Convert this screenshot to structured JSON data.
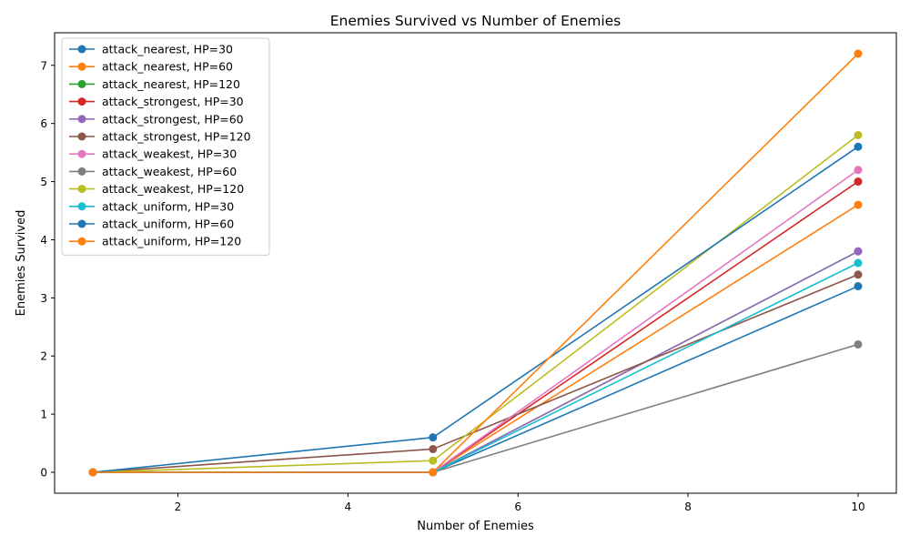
{
  "chart_data": {
    "type": "line",
    "title": "Enemies Survived vs Number of Enemies",
    "xlabel": "Number of Enemies",
    "ylabel": "Enemies Survived",
    "x": [
      1,
      5,
      10
    ],
    "xlim": [
      0.55,
      10.45
    ],
    "ylim": [
      -0.36,
      7.56
    ],
    "xticks": [
      2,
      4,
      6,
      8,
      10
    ],
    "yticks": [
      0,
      1,
      2,
      3,
      4,
      5,
      6,
      7
    ],
    "grid": false,
    "legend_position": "top-left",
    "marker": "circle",
    "series": [
      {
        "name": "attack_nearest, HP=30",
        "values": [
          0,
          0,
          3.2
        ],
        "color": "#1f77b4"
      },
      {
        "name": "attack_nearest, HP=60",
        "values": [
          0,
          0,
          4.6
        ],
        "color": "#ff7f0e"
      },
      {
        "name": "attack_nearest, HP=120",
        "values": [
          0,
          0,
          3.8
        ],
        "color": "#2ca02c"
      },
      {
        "name": "attack_strongest, HP=30",
        "values": [
          0,
          0,
          5.0
        ],
        "color": "#d62728"
      },
      {
        "name": "attack_strongest, HP=60",
        "values": [
          0,
          0,
          3.8
        ],
        "color": "#9467bd"
      },
      {
        "name": "attack_strongest, HP=120",
        "values": [
          0,
          0.4,
          3.4
        ],
        "color": "#8c564b"
      },
      {
        "name": "attack_weakest, HP=30",
        "values": [
          0,
          0,
          5.2
        ],
        "color": "#e377c2"
      },
      {
        "name": "attack_weakest, HP=60",
        "values": [
          0,
          0,
          2.2
        ],
        "color": "#7f7f7f"
      },
      {
        "name": "attack_weakest, HP=120",
        "values": [
          0,
          0.2,
          5.8
        ],
        "color": "#bcbd22"
      },
      {
        "name": "attack_uniform, HP=30",
        "values": [
          0,
          0,
          3.6
        ],
        "color": "#17becf"
      },
      {
        "name": "attack_uniform, HP=60",
        "values": [
          0,
          0.6,
          5.6
        ],
        "color": "#1f77b4"
      },
      {
        "name": "attack_uniform, HP=120",
        "values": [
          0,
          0,
          7.2
        ],
        "color": "#ff7f0e"
      }
    ]
  }
}
